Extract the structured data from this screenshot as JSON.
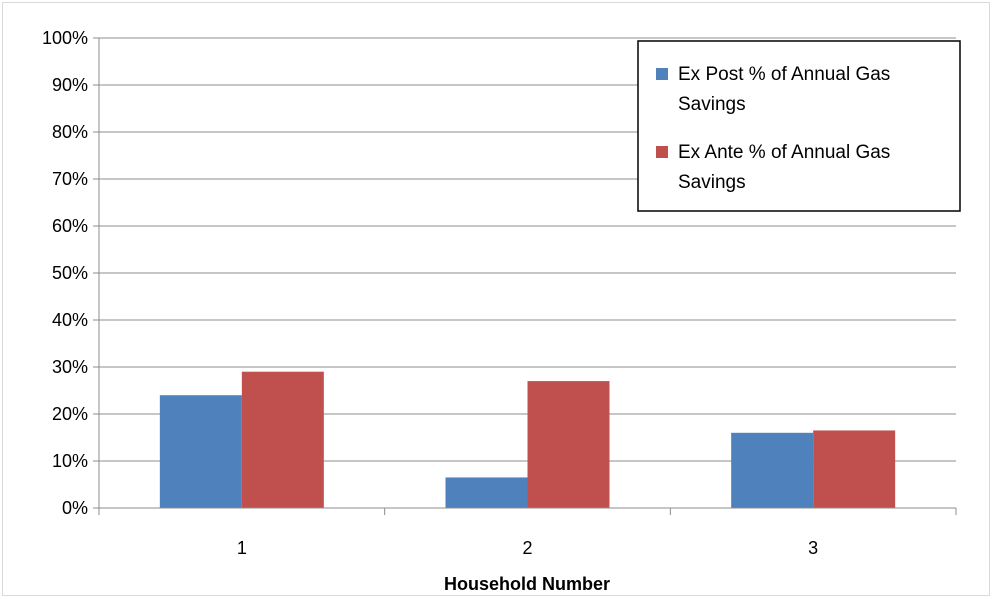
{
  "chart_data": {
    "type": "bar",
    "categories": [
      "1",
      "2",
      "3"
    ],
    "series": [
      {
        "name": "Ex Post % of Annual Gas Savings",
        "color": "#4F81BD",
        "values": [
          0.24,
          0.065,
          0.16
        ]
      },
      {
        "name": "Ex Ante % of Annual Gas Savings",
        "color": "#C0504D",
        "values": [
          0.29,
          0.27,
          0.165
        ]
      }
    ],
    "xlabel": "Household Number",
    "ylabel": "",
    "ylim": [
      0,
      1
    ],
    "yticks": [
      "0%",
      "10%",
      "20%",
      "30%",
      "40%",
      "50%",
      "60%",
      "70%",
      "80%",
      "90%",
      "100%"
    ],
    "grid": true,
    "legend_position": "top-right",
    "legend": [
      {
        "lines": [
          "Ex Post % of Annual Gas",
          "Savings"
        ],
        "color": "#4F81BD"
      },
      {
        "lines": [
          "Ex Ante % of Annual Gas",
          "Savings"
        ],
        "color": "#C0504D"
      }
    ]
  }
}
